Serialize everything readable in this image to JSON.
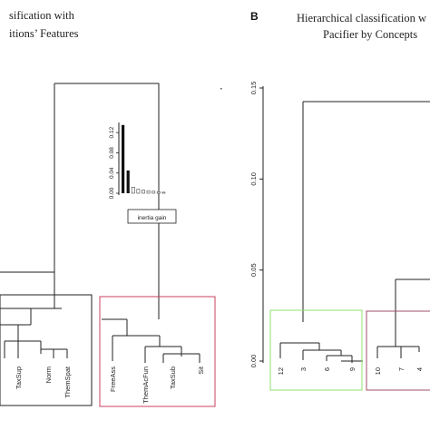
{
  "chart_data": [
    {
      "type": "dendrogram",
      "panel_letter": "",
      "title_lines": [
        "sification with",
        "itions’ Features"
      ],
      "leaves": [
        "TaxSup",
        "Norm",
        "ThemSpat",
        "FreeAss",
        "ThemAcFun",
        "TaxSub",
        "Sit"
      ],
      "cluster_boxes": [
        {
          "leaves": [
            "TaxSup",
            "Norm",
            "ThemSpat"
          ],
          "color": "#222222"
        },
        {
          "leaves": [
            "FreeAss",
            "ThemAcFun",
            "TaxSub",
            "Sit"
          ],
          "color": "#c8415f"
        }
      ],
      "inset": {
        "type": "bar",
        "yticks": [
          "0.00",
          "0.04",
          "0.08",
          "0.12"
        ],
        "ylim": [
          0,
          0.14
        ],
        "values": [
          0.135,
          0.045,
          0.012,
          0.008,
          0.006,
          0.005,
          0.004,
          0.003,
          0.002
        ],
        "legend": "inertia gain"
      }
    },
    {
      "type": "dendrogram",
      "panel_letter": "B",
      "title_lines": [
        "Hierarchical classification w",
        "Pacifier by Concepts"
      ],
      "yticks": [
        "0.00",
        "0.05",
        "0.10",
        "0.15"
      ],
      "ylim": [
        0,
        0.15
      ],
      "leaves": [
        "12",
        "3",
        "6",
        "9",
        "10",
        "7",
        "4"
      ],
      "cluster_boxes": [
        {
          "leaves": [
            "12",
            "3",
            "6",
            "9"
          ],
          "color": "#90e070"
        },
        {
          "leaves": [
            "10",
            "7",
            "4"
          ],
          "color": "#a0506a"
        }
      ]
    }
  ],
  "colors": {
    "line": "#222222",
    "green_box": "#90e070",
    "pink_box": "#c8415f",
    "dark_pink_box": "#a0506a"
  }
}
